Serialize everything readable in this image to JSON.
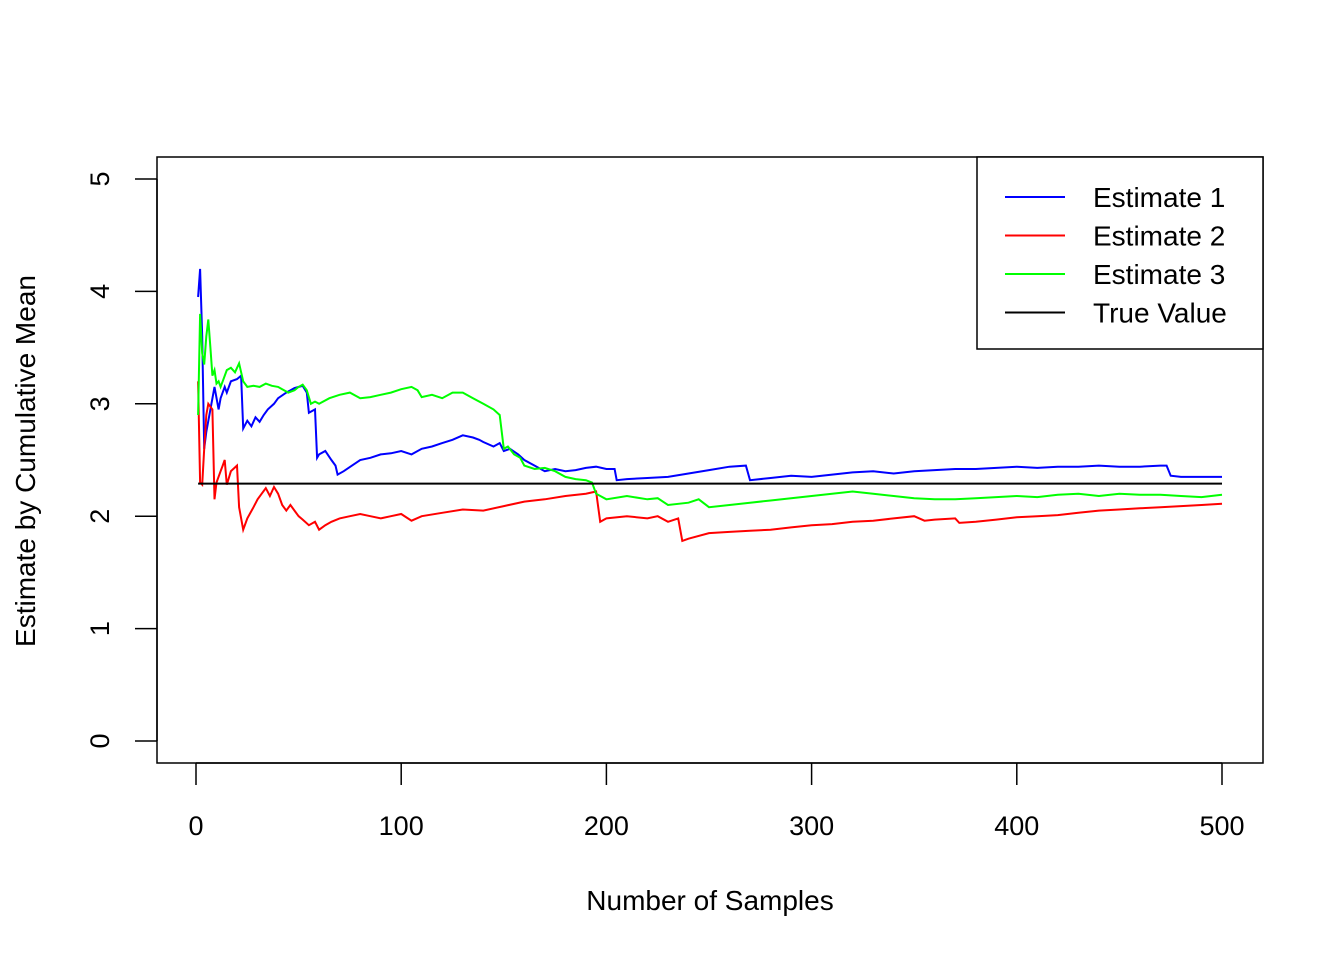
{
  "chart_data": {
    "type": "line",
    "title": "",
    "xlabel": "Number of Samples",
    "ylabel": "Estimate by Cumulative Mean",
    "xlim": [
      0,
      500
    ],
    "ylim": [
      0,
      5
    ],
    "xticks": [
      0,
      100,
      200,
      300,
      400,
      500
    ],
    "yticks": [
      0,
      1,
      2,
      3,
      4,
      5
    ],
    "grid": false,
    "legend_position": "top-right",
    "series": [
      {
        "name": "Estimate 1",
        "color": "#0000ff",
        "x": [
          1,
          2,
          3,
          4,
          5,
          7,
          9,
          11,
          12,
          14,
          15,
          17,
          20,
          22,
          23,
          25,
          27,
          29,
          31,
          33,
          35,
          38,
          40,
          44,
          48,
          52,
          54,
          55,
          58,
          59,
          60,
          63,
          66,
          68,
          69,
          72,
          76,
          80,
          85,
          90,
          95,
          100,
          105,
          110,
          115,
          120,
          125,
          130,
          135,
          138,
          140,
          145,
          148,
          150,
          153,
          157,
          160,
          165,
          168,
          170,
          175,
          180,
          185,
          190,
          195,
          200,
          204,
          205,
          210,
          220,
          230,
          240,
          250,
          260,
          268,
          270,
          280,
          290,
          300,
          310,
          320,
          330,
          340,
          350,
          360,
          370,
          380,
          390,
          400,
          410,
          420,
          430,
          440,
          450,
          460,
          470,
          473,
          475,
          480,
          490,
          500
        ],
        "y": [
          3.95,
          4.2,
          3.6,
          2.6,
          2.75,
          2.95,
          3.15,
          2.95,
          3.05,
          3.15,
          3.1,
          3.2,
          3.22,
          3.25,
          2.78,
          2.85,
          2.8,
          2.88,
          2.84,
          2.9,
          2.95,
          3.0,
          3.05,
          3.1,
          3.14,
          3.16,
          3.1,
          2.92,
          2.95,
          2.52,
          2.55,
          2.58,
          2.5,
          2.45,
          2.37,
          2.4,
          2.45,
          2.5,
          2.52,
          2.55,
          2.56,
          2.58,
          2.55,
          2.6,
          2.62,
          2.65,
          2.68,
          2.72,
          2.7,
          2.68,
          2.66,
          2.62,
          2.65,
          2.58,
          2.6,
          2.55,
          2.5,
          2.45,
          2.42,
          2.4,
          2.42,
          2.4,
          2.41,
          2.43,
          2.44,
          2.42,
          2.42,
          2.32,
          2.33,
          2.34,
          2.35,
          2.38,
          2.41,
          2.44,
          2.45,
          2.32,
          2.34,
          2.36,
          2.35,
          2.37,
          2.39,
          2.4,
          2.38,
          2.4,
          2.41,
          2.42,
          2.42,
          2.43,
          2.44,
          2.43,
          2.44,
          2.44,
          2.45,
          2.44,
          2.44,
          2.45,
          2.45,
          2.36,
          2.35,
          2.35,
          2.35
        ]
      },
      {
        "name": "Estimate 2",
        "color": "#ff0000",
        "x": [
          1,
          2,
          3,
          4,
          5,
          6,
          8,
          9,
          10,
          12,
          13,
          14,
          15,
          17,
          20,
          21,
          23,
          25,
          28,
          30,
          32,
          34,
          36,
          38,
          40,
          42,
          44,
          46,
          48,
          50,
          52,
          55,
          58,
          60,
          63,
          66,
          70,
          75,
          80,
          85,
          90,
          95,
          100,
          105,
          110,
          120,
          130,
          140,
          150,
          160,
          170,
          180,
          190,
          195,
          197,
          200,
          210,
          220,
          225,
          230,
          235,
          237,
          240,
          250,
          260,
          270,
          280,
          290,
          300,
          310,
          320,
          330,
          340,
          350,
          355,
          360,
          370,
          372,
          380,
          390,
          400,
          410,
          420,
          430,
          440,
          450,
          460,
          470,
          480,
          490,
          500
        ],
        "y": [
          3.2,
          2.3,
          2.28,
          2.6,
          2.9,
          3.0,
          2.95,
          2.15,
          2.3,
          2.4,
          2.45,
          2.5,
          2.28,
          2.4,
          2.45,
          2.08,
          1.88,
          1.98,
          2.08,
          2.15,
          2.2,
          2.25,
          2.18,
          2.26,
          2.2,
          2.1,
          2.05,
          2.1,
          2.05,
          2.0,
          1.97,
          1.92,
          1.95,
          1.88,
          1.92,
          1.95,
          1.98,
          2.0,
          2.02,
          2.0,
          1.98,
          2.0,
          2.02,
          1.96,
          2.0,
          2.03,
          2.06,
          2.05,
          2.09,
          2.13,
          2.15,
          2.18,
          2.2,
          2.22,
          1.95,
          1.98,
          2.0,
          1.98,
          2.0,
          1.95,
          1.98,
          1.78,
          1.8,
          1.85,
          1.86,
          1.87,
          1.88,
          1.9,
          1.92,
          1.93,
          1.95,
          1.96,
          1.98,
          2.0,
          1.96,
          1.97,
          1.98,
          1.94,
          1.95,
          1.97,
          1.99,
          2.0,
          2.01,
          2.03,
          2.05,
          2.06,
          2.07,
          2.08,
          2.09,
          2.1,
          2.11
        ]
      },
      {
        "name": "Estimate 3",
        "color": "#00ff00",
        "x": [
          1,
          2,
          3,
          4,
          5,
          6,
          7,
          8,
          9,
          10,
          11,
          12,
          13,
          15,
          17,
          19,
          21,
          23,
          25,
          28,
          31,
          34,
          37,
          40,
          42,
          45,
          48,
          50,
          52,
          54,
          56,
          58,
          60,
          65,
          70,
          75,
          80,
          85,
          90,
          95,
          100,
          105,
          108,
          110,
          115,
          120,
          125,
          130,
          135,
          140,
          145,
          148,
          150,
          152,
          155,
          158,
          160,
          165,
          170,
          175,
          180,
          185,
          190,
          193,
          195,
          200,
          210,
          220,
          225,
          230,
          240,
          245,
          250,
          260,
          270,
          280,
          290,
          300,
          310,
          320,
          330,
          340,
          350,
          360,
          370,
          380,
          390,
          400,
          410,
          420,
          430,
          440,
          450,
          460,
          470,
          480,
          490,
          500
        ],
        "y": [
          2.9,
          3.8,
          3.45,
          3.35,
          3.6,
          3.75,
          3.5,
          3.25,
          3.3,
          3.18,
          3.2,
          3.15,
          3.2,
          3.3,
          3.32,
          3.28,
          3.36,
          3.2,
          3.15,
          3.16,
          3.15,
          3.18,
          3.16,
          3.15,
          3.13,
          3.1,
          3.12,
          3.15,
          3.17,
          3.12,
          3.0,
          3.02,
          3.0,
          3.05,
          3.08,
          3.1,
          3.05,
          3.06,
          3.08,
          3.1,
          3.13,
          3.15,
          3.12,
          3.06,
          3.08,
          3.05,
          3.1,
          3.1,
          3.05,
          3.0,
          2.95,
          2.9,
          2.6,
          2.62,
          2.55,
          2.52,
          2.45,
          2.42,
          2.43,
          2.4,
          2.35,
          2.33,
          2.32,
          2.3,
          2.2,
          2.15,
          2.18,
          2.15,
          2.16,
          2.1,
          2.12,
          2.15,
          2.08,
          2.1,
          2.12,
          2.14,
          2.16,
          2.18,
          2.2,
          2.22,
          2.2,
          2.18,
          2.16,
          2.15,
          2.15,
          2.16,
          2.17,
          2.18,
          2.17,
          2.19,
          2.2,
          2.18,
          2.2,
          2.19,
          2.19,
          2.18,
          2.17,
          2.19
        ]
      },
      {
        "name": "True Value",
        "color": "#000000",
        "x": [
          1,
          500
        ],
        "y": [
          2.29,
          2.29
        ]
      }
    ]
  }
}
